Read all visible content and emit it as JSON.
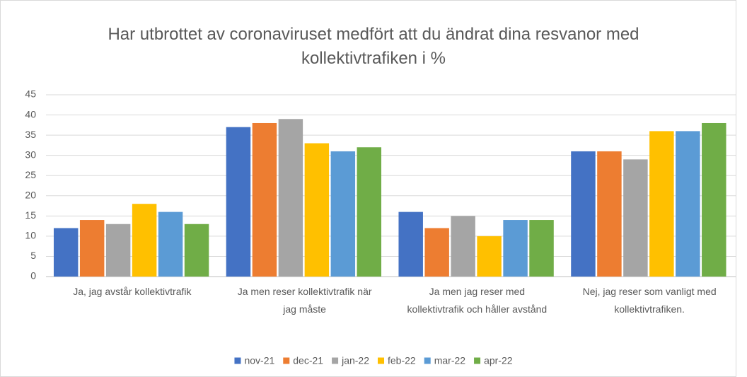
{
  "chart_data": {
    "type": "bar",
    "title": "Har utbrottet av coronaviruset medfört att du ändrat dina resvanor med kollektivtrafiken i %",
    "categories": [
      "Ja, jag avstår kollektivtrafik",
      "Ja men reser kollektivtrafik när jag måste",
      "Ja men jag reser med kollektivtrafik och håller avstånd",
      "Nej, jag reser som vanligt med kollektivtrafiken."
    ],
    "series": [
      {
        "name": "nov-21",
        "color": "#4472c4",
        "values": [
          12,
          37,
          16,
          31
        ]
      },
      {
        "name": "dec-21",
        "color": "#ed7d31",
        "values": [
          14,
          38,
          12,
          31
        ]
      },
      {
        "name": "jan-22",
        "color": "#a5a5a5",
        "values": [
          13,
          39,
          15,
          29
        ]
      },
      {
        "name": "feb-22",
        "color": "#ffc000",
        "values": [
          18,
          33,
          10,
          36
        ]
      },
      {
        "name": "mar-22",
        "color": "#5b9bd5",
        "values": [
          16,
          31,
          14,
          36
        ]
      },
      {
        "name": "apr-22",
        "color": "#70ad47",
        "values": [
          13,
          32,
          14,
          38
        ]
      }
    ],
    "ylim": [
      0,
      45
    ],
    "yticks": [
      0,
      5,
      10,
      15,
      20,
      25,
      30,
      35,
      40,
      45
    ],
    "grid": true,
    "legend": "bottom"
  }
}
